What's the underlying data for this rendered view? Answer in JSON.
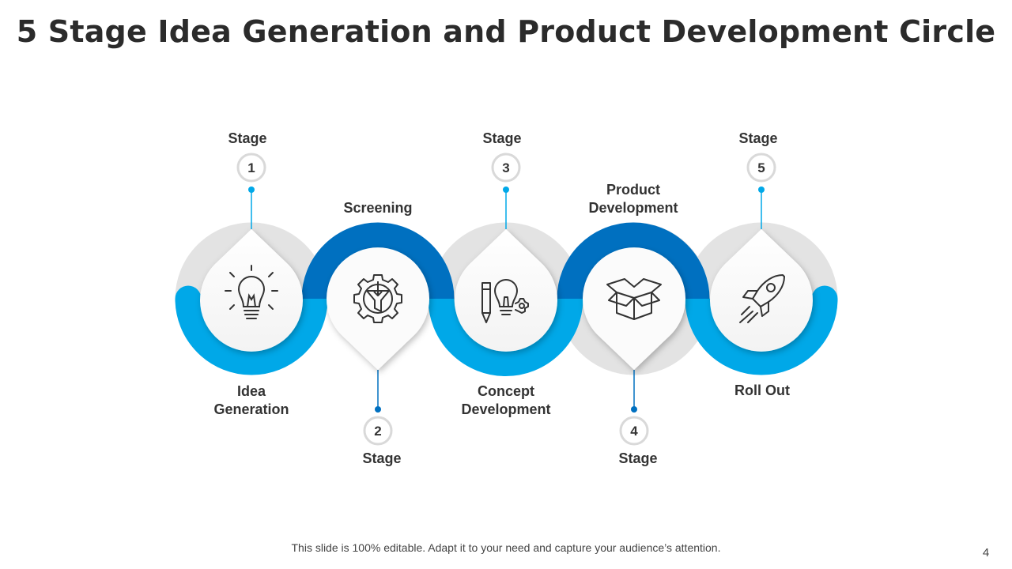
{
  "title": "5 Stage Idea Generation and Product Development Circle",
  "footer": "This slide is 100% editable. Adapt it to your need and capture your audience’s attention.",
  "page_number": "4",
  "colors": {
    "dark_blue": "#0070c0",
    "light_blue": "#00a8e8",
    "grey_ring": "#e3e3e3",
    "text": "#333333"
  },
  "stages": [
    {
      "stage_label": "Stage",
      "number": "1",
      "name": "Idea\nGeneration",
      "icon": "lightbulb-icon"
    },
    {
      "stage_label": "Stage",
      "number": "2",
      "name": "Screening",
      "icon": "gear-filter-icon"
    },
    {
      "stage_label": "Stage",
      "number": "3",
      "name": "Concept\nDevelopment",
      "icon": "pencil-bulb-gear-icon"
    },
    {
      "stage_label": "Stage",
      "number": "4",
      "name": "Product\nDevelopment",
      "icon": "open-box-icon"
    },
    {
      "stage_label": "Stage",
      "number": "5",
      "name": "Roll Out",
      "icon": "rocket-icon"
    }
  ]
}
